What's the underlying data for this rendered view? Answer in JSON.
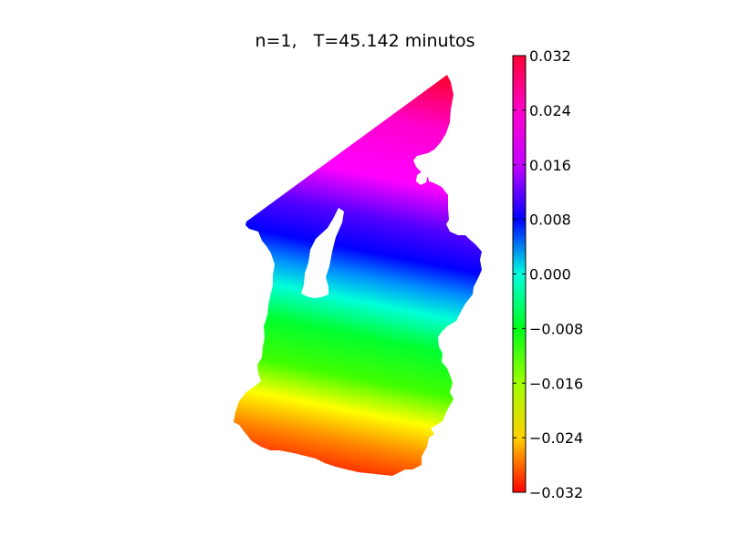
{
  "chart_data": {
    "type": "heatmap",
    "title": "n=1,   T=45.142 minutos",
    "xlabel": "",
    "ylabel": "",
    "colormap": "gist_rainbow (red → orange → yellow → green → cyan → blue → magenta → red)",
    "color_range": [
      -0.032,
      0.032
    ],
    "colorbar": {
      "placement": "right",
      "ticks": [
        0.032,
        0.024,
        0.016,
        0.008,
        0.0,
        -0.008,
        -0.016,
        -0.024,
        -0.032
      ],
      "tick_labels": [
        "0.032",
        "0.024",
        "0.016",
        "0.008",
        "0.000",
        "−0.008",
        "−0.016",
        "−0.024",
        "−0.032"
      ]
    },
    "field_description_values": {
      "north_tip": 0.032,
      "north_strip": 0.024,
      "upper_middle": 0.008,
      "center": 0.0,
      "lower_middle": -0.012,
      "south": -0.028,
      "southwest_corner": -0.032
    },
    "axes_visible": false,
    "grid": false
  }
}
